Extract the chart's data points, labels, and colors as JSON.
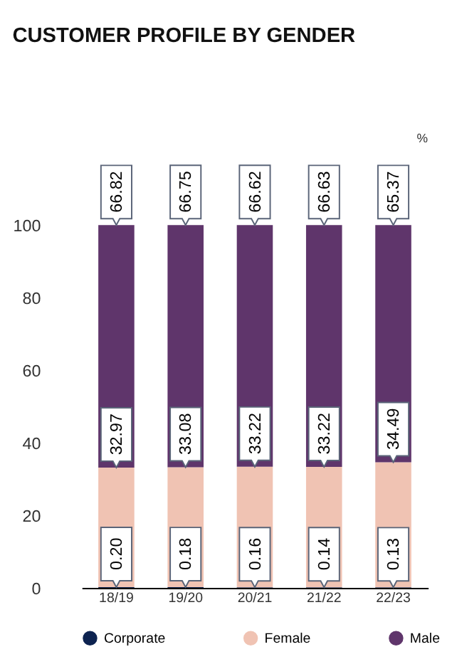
{
  "chart_data": {
    "type": "bar",
    "title": "CUSTOMER PROFILE BY GENDER",
    "stacked": true,
    "categories": [
      "18/19",
      "19/20",
      "20/21",
      "21/22",
      "22/23"
    ],
    "series": [
      {
        "name": "Corporate",
        "color": "#0d2350",
        "values": [
          0.2,
          0.18,
          0.16,
          0.14,
          0.13
        ],
        "value_labels": [
          "0.20",
          "0.18",
          "0.16",
          "0.14",
          "0.13"
        ]
      },
      {
        "name": "Female",
        "color": "#f0c3b3",
        "values": [
          32.97,
          33.08,
          33.22,
          33.22,
          34.49
        ],
        "value_labels": [
          "32.97",
          "33.08",
          "33.22",
          "33.22",
          "34.49"
        ]
      },
      {
        "name": "Male",
        "color": "#5f356b",
        "values": [
          66.82,
          66.75,
          66.62,
          66.63,
          65.37
        ],
        "value_labels": [
          "66.82",
          "66.75",
          "66.62",
          "66.63",
          "65.37"
        ]
      }
    ],
    "annotations": [
      "%"
    ],
    "ylim": [
      0,
      100
    ],
    "yticks": [
      0,
      20,
      40,
      60,
      80,
      100
    ],
    "grid": false,
    "legend": "bottom"
  }
}
